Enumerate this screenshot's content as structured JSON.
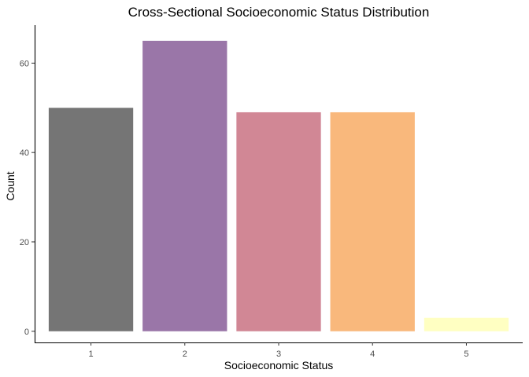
{
  "chart_data": {
    "type": "bar",
    "title": "Cross-Sectional Socioeconomic Status Distribution",
    "xlabel": "Socioeconomic Status",
    "ylabel": "Count",
    "categories": [
      "1",
      "2",
      "3",
      "4",
      "5"
    ],
    "values": [
      50,
      65,
      49,
      49,
      3
    ],
    "colors": [
      "#757575",
      "#9a76a8",
      "#d18795",
      "#f9b87c",
      "#ffffc2"
    ],
    "yticks": [
      0,
      20,
      40,
      60
    ],
    "ylim": [
      -2.5,
      68.5
    ],
    "grid": false,
    "legend": "none"
  }
}
